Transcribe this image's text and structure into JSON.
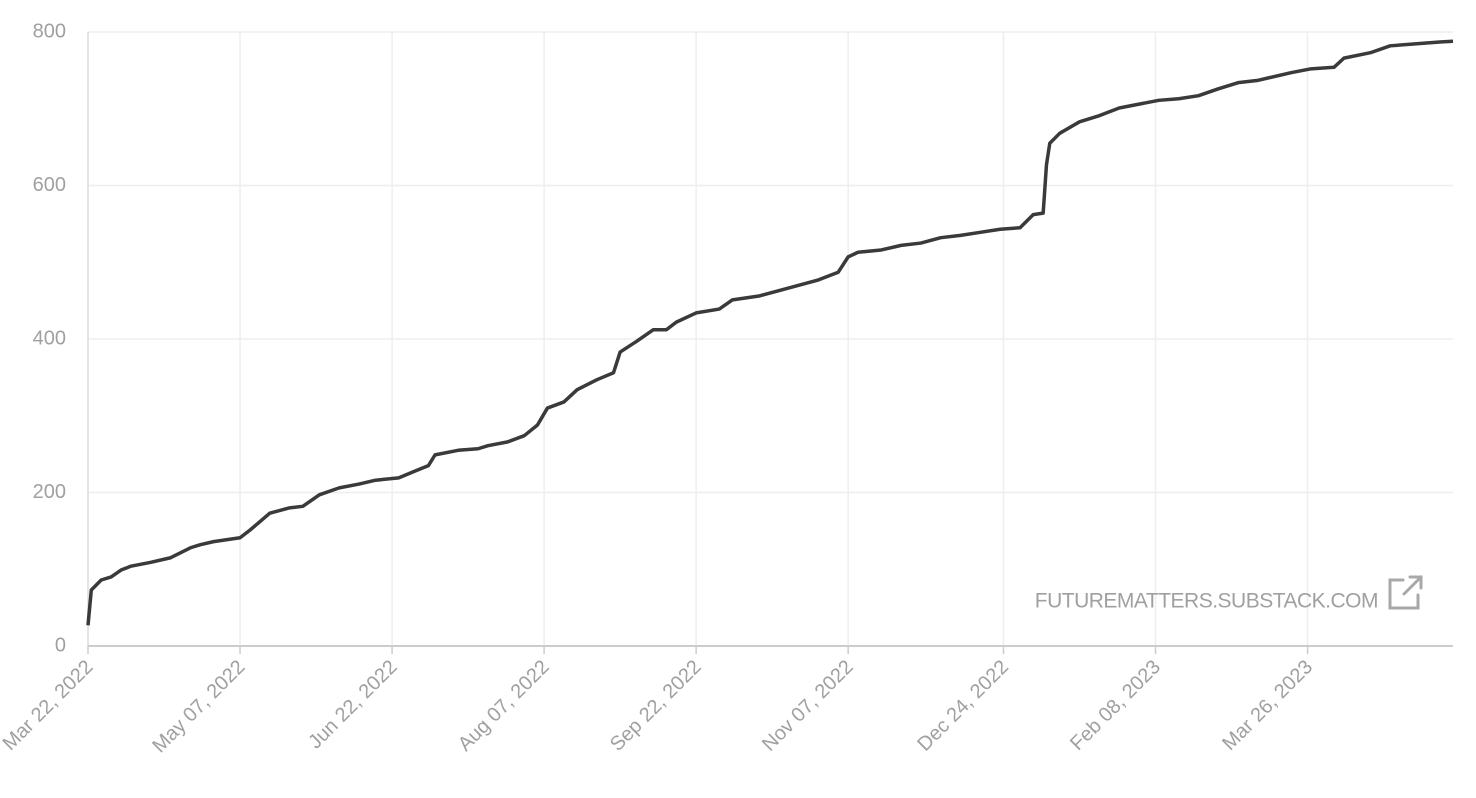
{
  "chart_data": {
    "type": "line",
    "watermark": "FUTUREMATTERS.SUBSTACK.COM",
    "x": [
      "2022-03-22",
      "2022-03-23",
      "2022-03-26",
      "2022-03-29",
      "2022-04-01",
      "2022-04-04",
      "2022-04-10",
      "2022-04-16",
      "2022-04-22",
      "2022-04-25",
      "2022-04-29",
      "2022-05-07",
      "2022-05-10",
      "2022-05-13",
      "2022-05-16",
      "2022-05-22",
      "2022-05-26",
      "2022-05-31",
      "2022-06-06",
      "2022-06-12",
      "2022-06-17",
      "2022-06-24",
      "2022-06-29",
      "2022-07-03",
      "2022-07-05",
      "2022-07-12",
      "2022-07-18",
      "2022-07-21",
      "2022-07-27",
      "2022-08-01",
      "2022-08-05",
      "2022-08-08",
      "2022-08-13",
      "2022-08-17",
      "2022-08-23",
      "2022-08-28",
      "2022-08-30",
      "2022-09-04",
      "2022-09-09",
      "2022-09-13",
      "2022-09-16",
      "2022-09-22",
      "2022-09-29",
      "2022-10-03",
      "2022-10-11",
      "2022-10-17",
      "2022-10-23",
      "2022-10-29",
      "2022-11-04",
      "2022-11-07",
      "2022-11-10",
      "2022-11-17",
      "2022-11-23",
      "2022-11-29",
      "2022-12-05",
      "2022-12-11",
      "2022-12-17",
      "2022-12-23",
      "2022-12-29",
      "2023-01-02",
      "2023-01-05",
      "2023-01-06",
      "2023-01-07",
      "2023-01-10",
      "2023-01-16",
      "2023-01-22",
      "2023-01-28",
      "2023-02-03",
      "2023-02-09",
      "2023-02-15",
      "2023-02-21",
      "2023-02-27",
      "2023-03-05",
      "2023-03-11",
      "2023-03-21",
      "2023-03-27",
      "2023-04-03",
      "2023-04-06",
      "2023-04-14",
      "2023-04-20",
      "2023-04-29",
      "2023-05-05",
      "2023-05-09"
    ],
    "series": [
      {
        "color": "#3a3a3a",
        "values": [
          27,
          73,
          86,
          90,
          99,
          104,
          109,
          115,
          128,
          132,
          136,
          141,
          151,
          162,
          173,
          180,
          182,
          197,
          206,
          211,
          216,
          219,
          228,
          235,
          249,
          255,
          257,
          261,
          266,
          274,
          288,
          310,
          318,
          334,
          347,
          356,
          383,
          397,
          412,
          412,
          422,
          434,
          439,
          451,
          456,
          463,
          470,
          477,
          487,
          507,
          513,
          516,
          522,
          525,
          532,
          535,
          539,
          543,
          545,
          562,
          564,
          627,
          655,
          668,
          683,
          691,
          701,
          706,
          711,
          713,
          717,
          726,
          734,
          737,
          747,
          752,
          754,
          766,
          773,
          782,
          785,
          787,
          788
        ]
      }
    ],
    "xlim": [
      "2022-03-22",
      "2023-05-09"
    ],
    "xticks": [
      {
        "value": "2022-03-22",
        "label": "Mar 22, 2022"
      },
      {
        "value": "2022-05-07",
        "label": "May 07, 2022"
      },
      {
        "value": "2022-06-22",
        "label": "Jun 22, 2022"
      },
      {
        "value": "2022-08-07",
        "label": "Aug 07, 2022"
      },
      {
        "value": "2022-09-22",
        "label": "Sep 22, 2022"
      },
      {
        "value": "2022-11-07",
        "label": "Nov 07, 2022"
      },
      {
        "value": "2022-12-24",
        "label": "Dec 24, 2022"
      },
      {
        "value": "2023-02-08",
        "label": "Feb 08, 2023"
      },
      {
        "value": "2023-03-26",
        "label": "Mar 26, 2023"
      }
    ],
    "ylim": [
      0,
      800
    ],
    "yticks": [
      0,
      200,
      400,
      600,
      800
    ],
    "grid": true
  }
}
